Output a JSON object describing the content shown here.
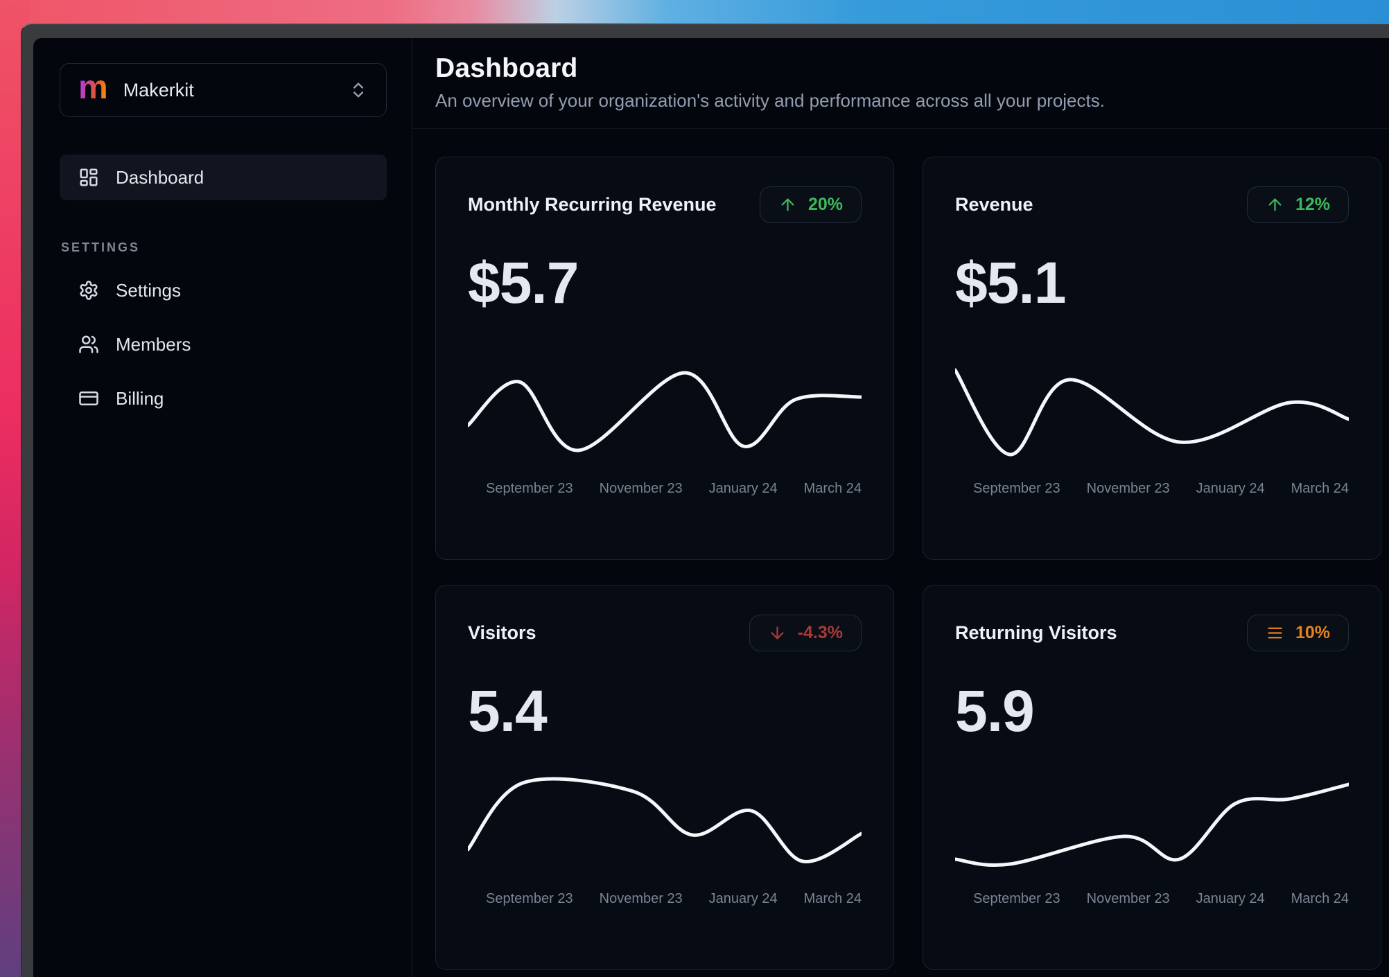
{
  "colors": {
    "accent_green": "#3cb95c",
    "accent_red": "#a93a38",
    "accent_orange": "#e8821c",
    "brand_gradient": [
      "#b73bd4",
      "#f5a00b"
    ],
    "chart_line": "#f5f7fa"
  },
  "sidebar": {
    "workspace": {
      "logo_letter": "m",
      "name": "Makerkit"
    },
    "nav": [
      {
        "label": "Dashboard",
        "icon": "layout-dashboard-icon",
        "active": true
      }
    ],
    "section_label": "SETTINGS",
    "settings_nav": [
      {
        "label": "Settings",
        "icon": "gear-icon",
        "active": false
      },
      {
        "label": "Members",
        "icon": "users-icon",
        "active": false
      },
      {
        "label": "Billing",
        "icon": "credit-card-icon",
        "active": false
      }
    ]
  },
  "header": {
    "title": "Dashboard",
    "subtitle": "An overview of your organization's activity and performance across all your projects."
  },
  "cards": [
    {
      "title": "Monthly Recurring Revenue",
      "value": "$5.7",
      "badge": {
        "text": "20%",
        "style": "up",
        "icon": "arrow-up-icon"
      }
    },
    {
      "title": "Revenue",
      "value": "$5.1",
      "badge": {
        "text": "12%",
        "style": "up",
        "icon": "arrow-up-icon"
      }
    },
    {
      "title": "Visitors",
      "value": "5.4",
      "badge": {
        "text": "-4.3%",
        "style": "down",
        "icon": "arrow-down-icon"
      }
    },
    {
      "title": "Returning Visitors",
      "value": "5.9",
      "badge": {
        "text": "10%",
        "style": "menu",
        "icon": "menu-icon"
      }
    }
  ],
  "chart_data": [
    {
      "type": "line",
      "title": "Monthly Recurring Revenue",
      "value_label": "$5.7",
      "change": "+20%",
      "x_ticks": [
        "September 23",
        "November 23",
        "January 24",
        "March 24"
      ],
      "sparkline_points": [
        [
          0,
          94
        ],
        [
          73,
          31
        ],
        [
          157,
          130
        ],
        [
          308,
          18
        ],
        [
          392,
          124
        ],
        [
          465,
          57
        ],
        [
          560,
          53
        ]
      ]
    },
    {
      "type": "line",
      "title": "Revenue",
      "value_label": "$5.1",
      "change": "+12%",
      "x_ticks": [
        "September 23",
        "November 23",
        "January 24",
        "March 24"
      ],
      "sparkline_points": [
        [
          0,
          14
        ],
        [
          78,
          136
        ],
        [
          162,
          28
        ],
        [
          319,
          118
        ],
        [
          476,
          61
        ],
        [
          560,
          85
        ]
      ]
    },
    {
      "type": "line",
      "title": "Visitors",
      "value_label": "5.4",
      "change": "-4.3%",
      "x_ticks": [
        "September 23",
        "November 23",
        "January 24",
        "March 24"
      ],
      "sparkline_points": [
        [
          0,
          114
        ],
        [
          78,
          18
        ],
        [
          235,
          30
        ],
        [
          319,
          93
        ],
        [
          403,
          58
        ],
        [
          476,
          131
        ],
        [
          560,
          91
        ]
      ]
    },
    {
      "type": "line",
      "title": "Returning Visitors",
      "value_label": "5.9",
      "change": "+10%",
      "x_ticks": [
        "September 23",
        "November 23",
        "January 24",
        "March 24"
      ],
      "sparkline_points": [
        [
          0,
          128
        ],
        [
          78,
          135
        ],
        [
          241,
          95
        ],
        [
          319,
          128
        ],
        [
          398,
          48
        ],
        [
          476,
          41
        ],
        [
          560,
          20
        ]
      ]
    }
  ]
}
